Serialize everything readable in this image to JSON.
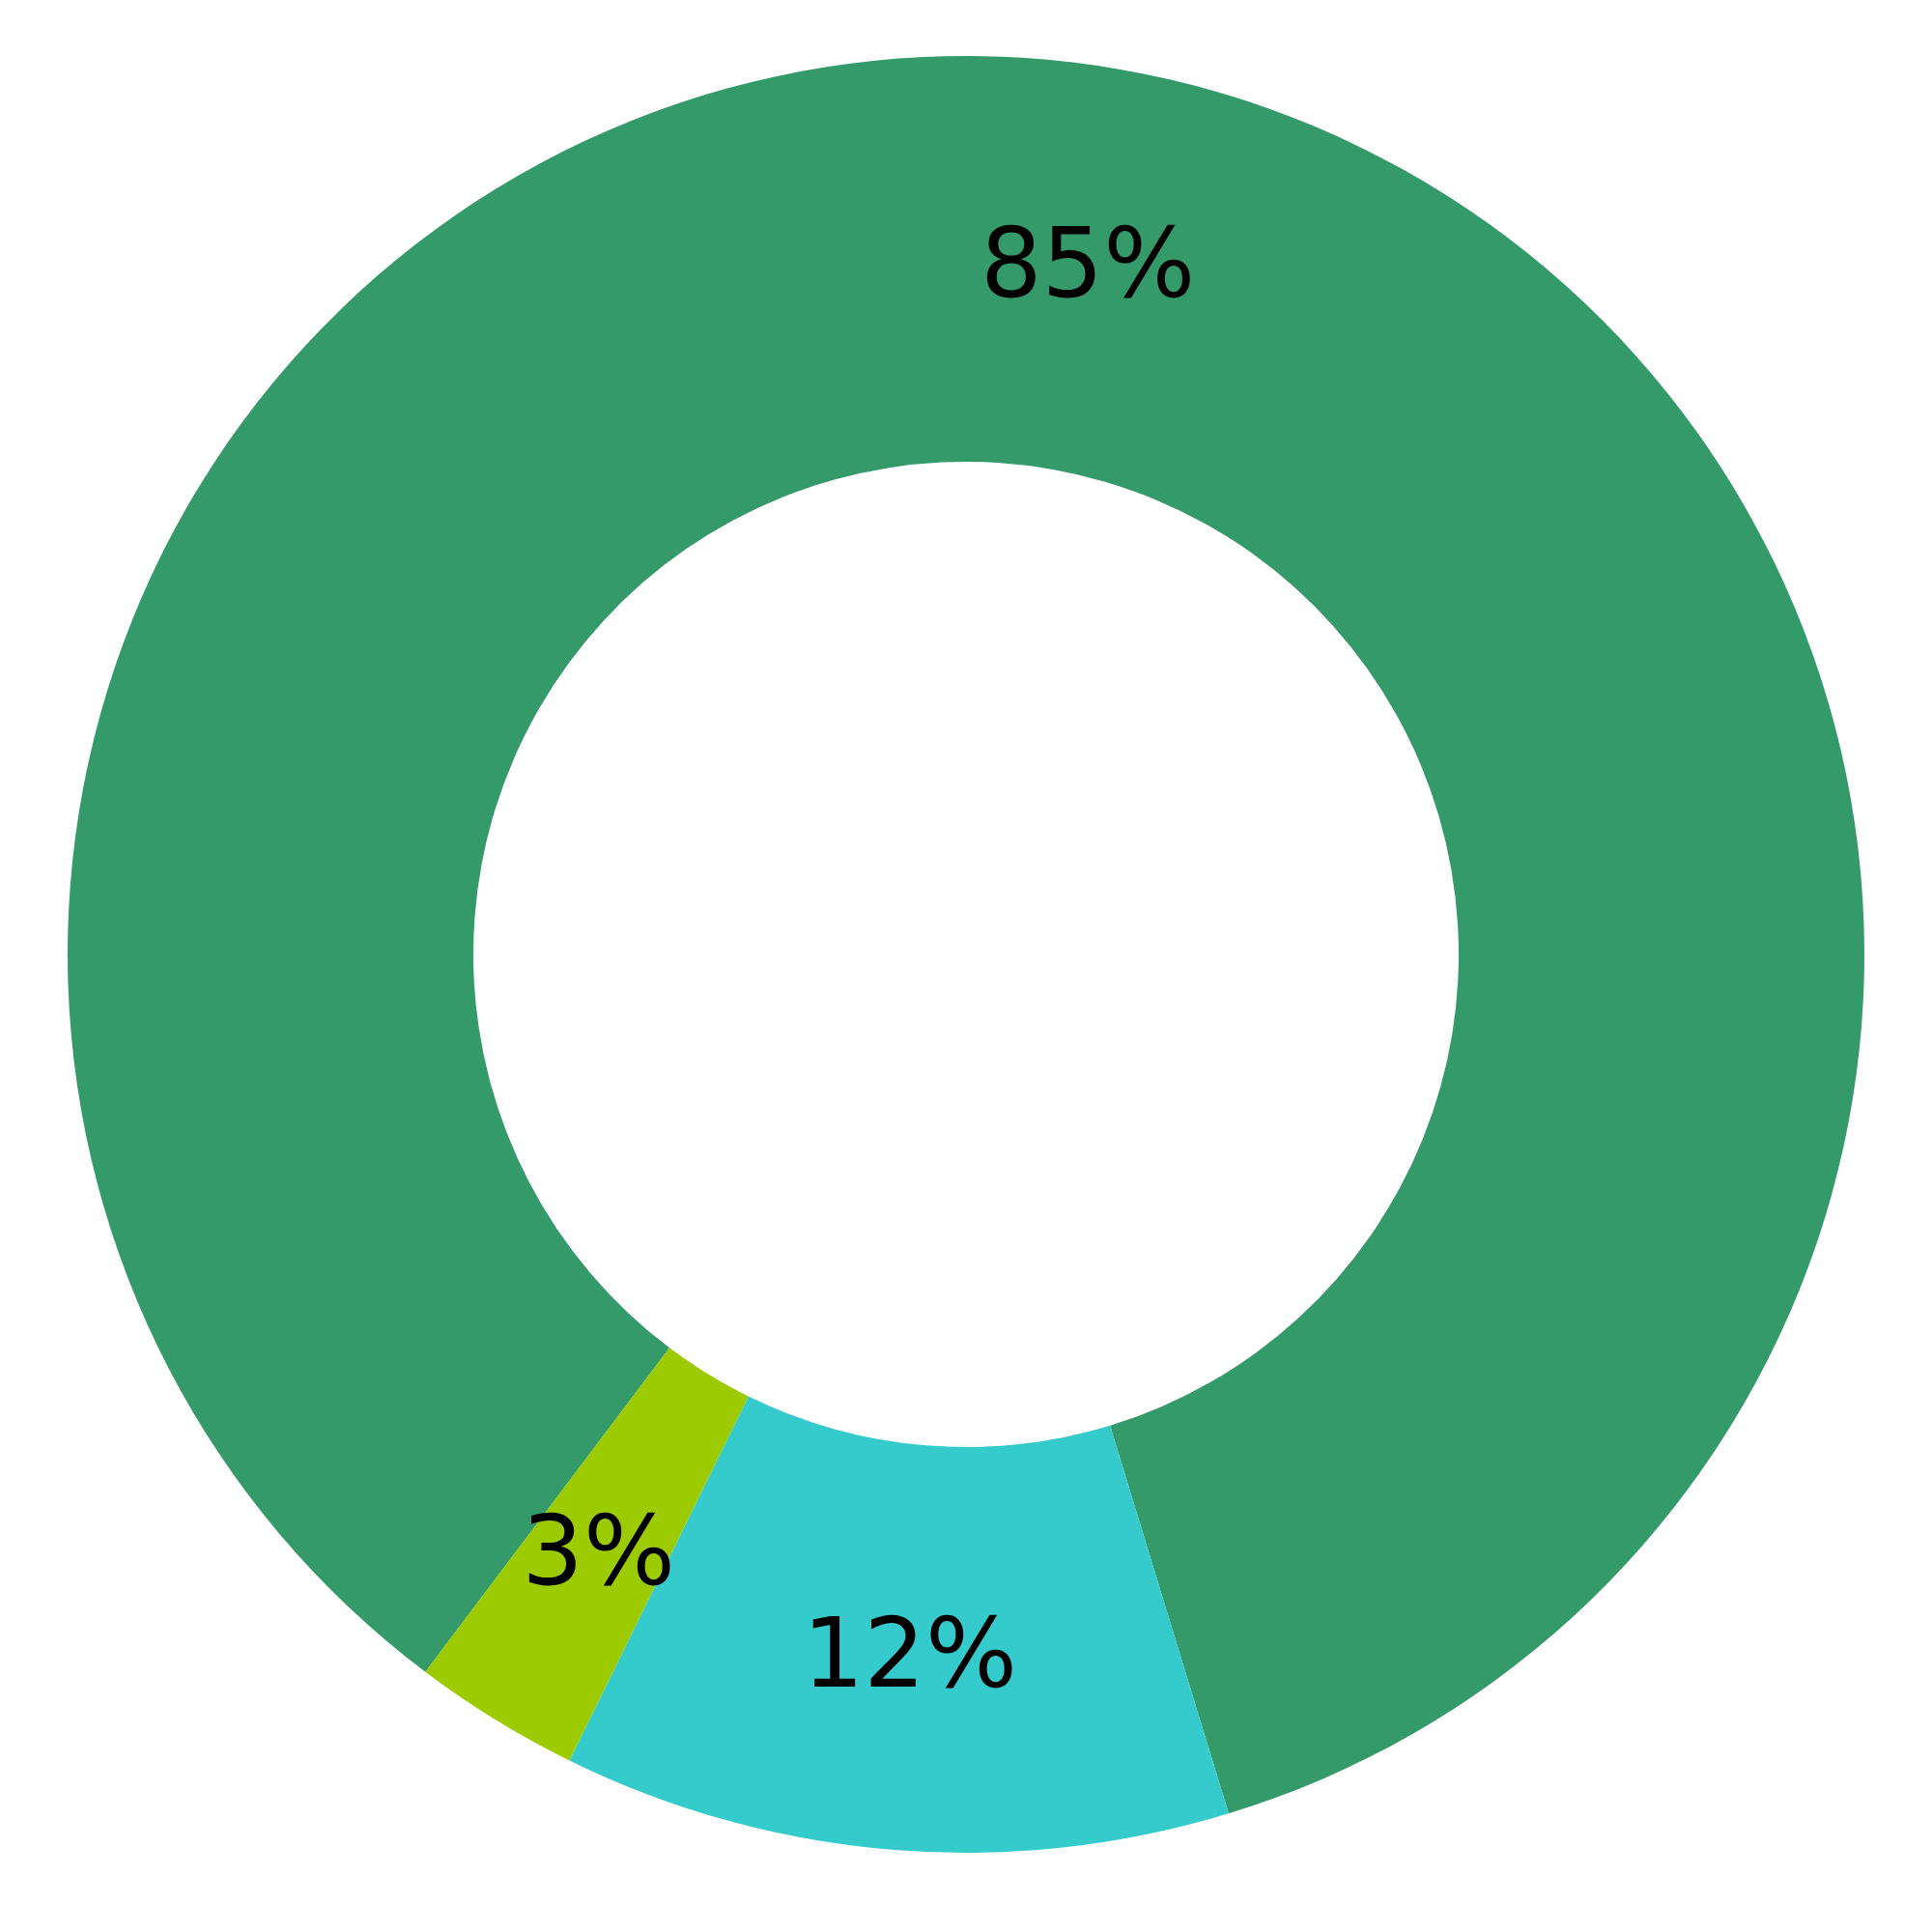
{
  "chart_data": {
    "type": "donut",
    "categories": [
      null,
      null,
      null
    ],
    "values": [
      85,
      12,
      3
    ],
    "colors": [
      "#359a6a",
      "#35cbcd",
      "#9bcb00"
    ],
    "value_labels": [
      "85%",
      "12%",
      "3%"
    ]
  }
}
